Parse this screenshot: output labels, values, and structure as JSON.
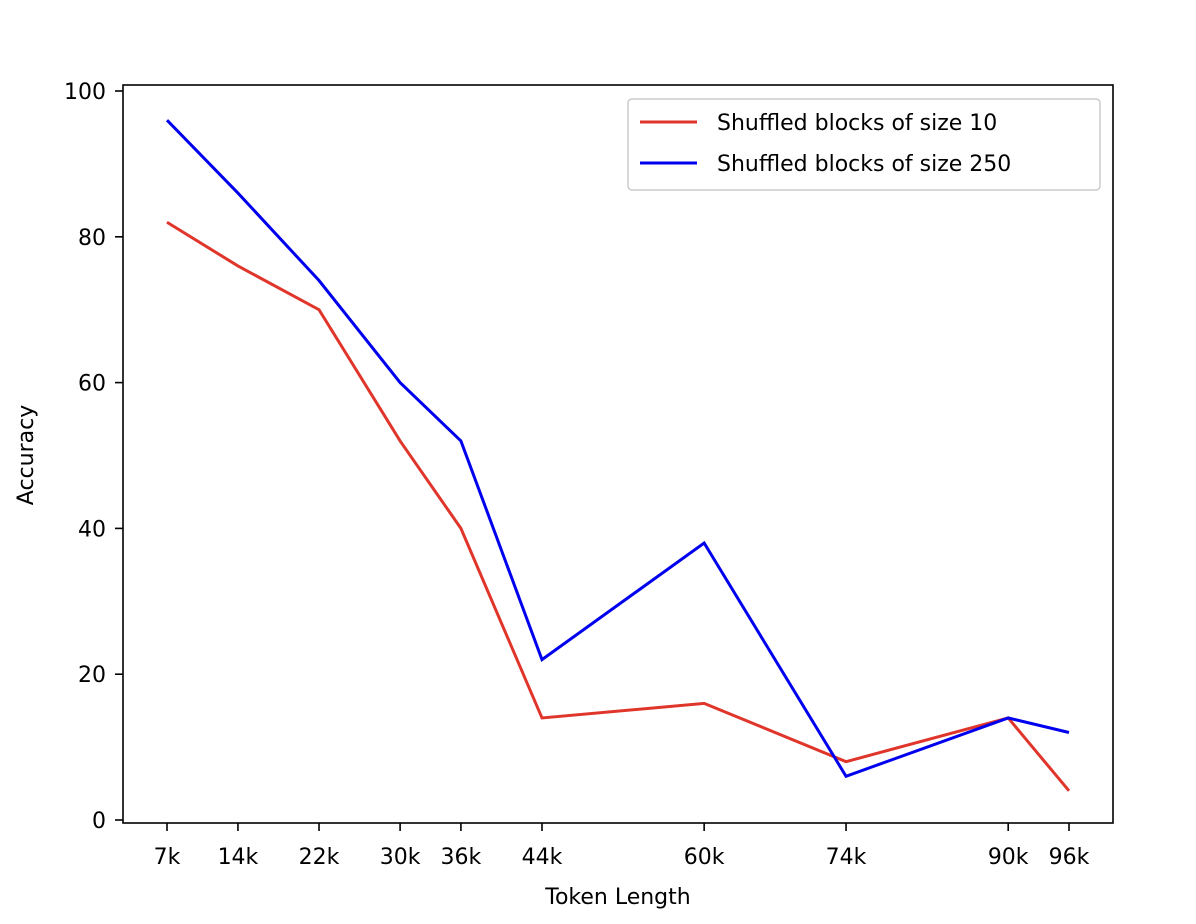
{
  "chart_data": {
    "type": "line",
    "title": "",
    "xlabel": "Token Length",
    "ylabel": "Accuracy",
    "x_scale": "categorical-positioned",
    "x": [
      7,
      14,
      22,
      30,
      36,
      44,
      60,
      74,
      90,
      96
    ],
    "x_tick_labels": [
      "7k",
      "14k",
      "22k",
      "30k",
      "36k",
      "44k",
      "60k",
      "74k",
      "90k",
      "96k"
    ],
    "ylim": [
      0,
      100
    ],
    "y_ticks": [
      0,
      20,
      40,
      60,
      80,
      100
    ],
    "grid": false,
    "legend_position": "top-right",
    "series": [
      {
        "name": "Shuffled blocks of size 10",
        "color": "#e0352b",
        "values": [
          82,
          76,
          70,
          52,
          40,
          14,
          16,
          8,
          14,
          4
        ]
      },
      {
        "name": "Shuffled blocks of size 250",
        "color": "#0000ee",
        "values": [
          96,
          86,
          74,
          60,
          52,
          22,
          38,
          6,
          14,
          12
        ]
      }
    ]
  }
}
